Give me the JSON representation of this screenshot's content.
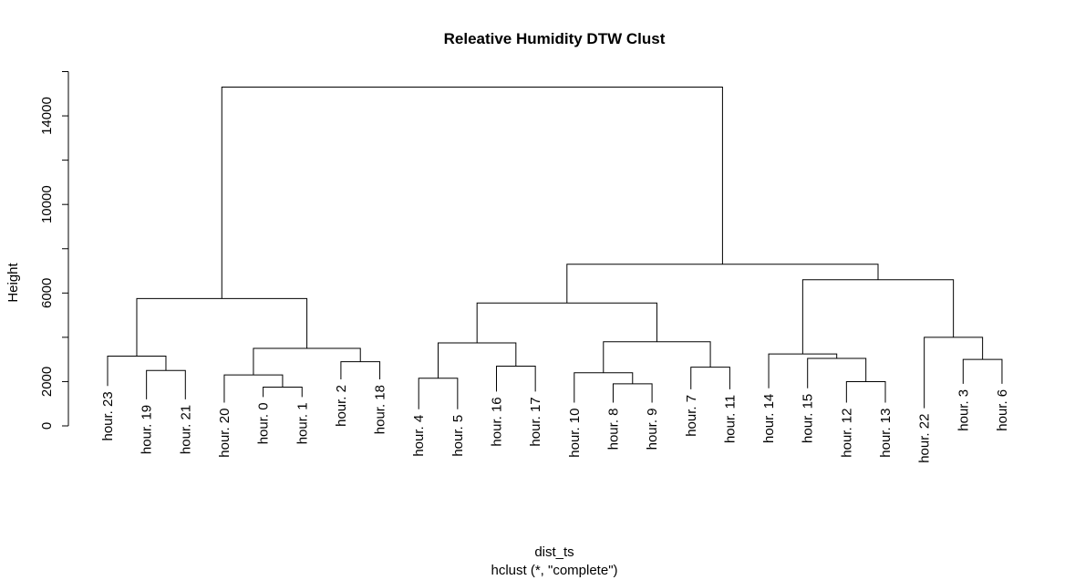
{
  "chart_data": {
    "type": "dendrogram",
    "title": "Releative Humidity DTW Clust",
    "xlabel": "dist_ts",
    "sublabel": "hclust (*, \"complete\")",
    "ylabel": "Height",
    "ylim": [
      0,
      16000
    ],
    "yticks": [
      0,
      2000,
      6000,
      10000,
      14000
    ],
    "ytick_labels": [
      "0",
      "2000",
      "6000",
      "10000",
      "14000"
    ],
    "minor_yticks": [
      4000,
      8000,
      12000,
      16000
    ],
    "leaves": [
      {
        "label": "hour. 23",
        "height": 1800
      },
      {
        "label": "hour. 19",
        "height": 1200
      },
      {
        "label": "hour. 21",
        "height": 1200
      },
      {
        "label": "hour. 20",
        "height": 1050
      },
      {
        "label": "hour. 0",
        "height": 1300
      },
      {
        "label": "hour. 1",
        "height": 1300
      },
      {
        "label": "hour. 2",
        "height": 2100
      },
      {
        "label": "hour. 18",
        "height": 2100
      },
      {
        "label": "hour. 4",
        "height": 750
      },
      {
        "label": "hour. 5",
        "height": 750
      },
      {
        "label": "hour. 16",
        "height": 1550
      },
      {
        "label": "hour. 17",
        "height": 1550
      },
      {
        "label": "hour. 10",
        "height": 1050
      },
      {
        "label": "hour. 8",
        "height": 1050
      },
      {
        "label": "hour. 9",
        "height": 1050
      },
      {
        "label": "hour. 7",
        "height": 1650
      },
      {
        "label": "hour. 11",
        "height": 1650
      },
      {
        "label": "hour. 14",
        "height": 1700
      },
      {
        "label": "hour. 15",
        "height": 1700
      },
      {
        "label": "hour. 12",
        "height": 1050
      },
      {
        "label": "hour. 13",
        "height": 1050
      },
      {
        "label": "hour. 22",
        "height": 800
      },
      {
        "label": "hour. 3",
        "height": 1900
      },
      {
        "label": "hour. 6",
        "height": 1900
      }
    ],
    "merges": [
      {
        "left": "hour. 19",
        "right": "hour. 21",
        "height": 2500
      },
      {
        "left": "hour. 23",
        "right": "merge-1",
        "height": 3150
      },
      {
        "left": "hour. 0",
        "right": "hour. 1",
        "height": 1750
      },
      {
        "left": "hour. 20",
        "right": "merge-3",
        "height": 2300
      },
      {
        "left": "hour. 2",
        "right": "hour. 18",
        "height": 2900
      },
      {
        "left": "merge-4",
        "right": "merge-5",
        "height": 3500
      },
      {
        "left": "merge-2",
        "right": "merge-6",
        "height": 5750
      },
      {
        "left": "hour. 4",
        "right": "hour. 5",
        "height": 2150
      },
      {
        "left": "hour. 16",
        "right": "hour. 17",
        "height": 2700
      },
      {
        "left": "merge-8",
        "right": "merge-9",
        "height": 3750
      },
      {
        "left": "hour. 8",
        "right": "hour. 9",
        "height": 1900
      },
      {
        "left": "hour. 10",
        "right": "merge-11",
        "height": 2400
      },
      {
        "left": "hour. 7",
        "right": "hour. 11",
        "height": 2650
      },
      {
        "left": "merge-12",
        "right": "merge-13",
        "height": 3800
      },
      {
        "left": "merge-10",
        "right": "merge-14",
        "height": 5550
      },
      {
        "left": "hour. 12",
        "right": "hour. 13",
        "height": 2000
      },
      {
        "left": "hour. 15",
        "right": "merge-16",
        "height": 3050
      },
      {
        "left": "hour. 14",
        "right": "merge-17",
        "height": 3250
      },
      {
        "left": "hour. 3",
        "right": "hour. 6",
        "height": 3000
      },
      {
        "left": "hour. 22",
        "right": "merge-19",
        "height": 4000
      },
      {
        "left": "merge-18",
        "right": "merge-20",
        "height": 6600
      },
      {
        "left": "merge-15",
        "right": "merge-21",
        "height": 7300
      },
      {
        "left": "merge-7",
        "right": "merge-22",
        "height": 15300
      }
    ],
    "grid": false,
    "legend": "none"
  }
}
